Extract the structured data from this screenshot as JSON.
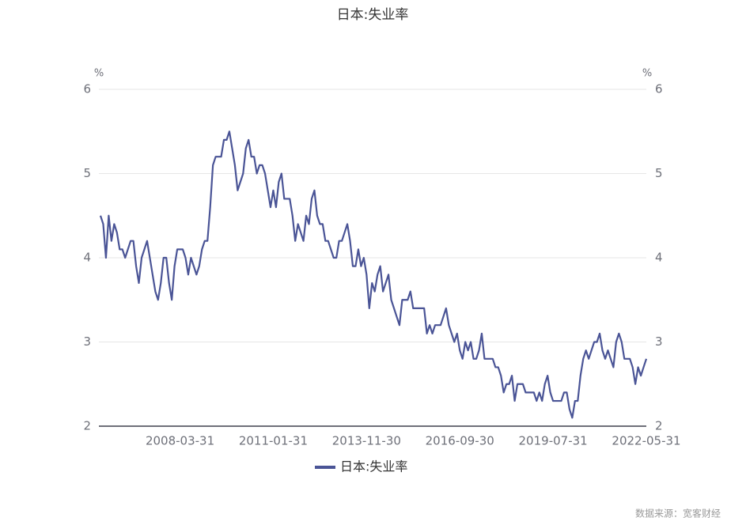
{
  "chart_data": {
    "type": "line",
    "title": "日本:失业率",
    "categories": [
      null,
      null,
      null,
      null,
      null,
      null,
      null,
      null,
      null,
      null,
      null,
      null,
      null,
      null,
      null,
      null,
      null,
      null,
      null,
      null,
      null,
      null,
      null,
      null,
      null,
      null,
      null,
      null,
      null,
      "2008-03-31",
      null,
      null,
      null,
      null,
      null,
      null,
      null,
      null,
      null,
      null,
      null,
      null,
      null,
      null,
      null,
      null,
      null,
      null,
      null,
      null,
      null,
      null,
      null,
      null,
      null,
      null,
      null,
      null,
      null,
      null,
      null,
      null,
      null,
      "2011-01-31",
      null,
      null,
      null,
      null,
      null,
      null,
      null,
      null,
      null,
      null,
      null,
      null,
      null,
      null,
      null,
      null,
      null,
      null,
      null,
      null,
      null,
      null,
      null,
      null,
      null,
      null,
      null,
      null,
      null,
      null,
      null,
      null,
      null,
      "2013-11-30",
      null,
      null,
      null,
      null,
      null,
      null,
      null,
      null,
      null,
      null,
      null,
      null,
      null,
      null,
      null,
      null,
      null,
      null,
      null,
      null,
      null,
      null,
      null,
      null,
      null,
      null,
      null,
      null,
      null,
      null,
      null,
      null,
      null,
      "2016-09-30",
      null,
      null,
      null,
      null,
      null,
      null,
      null,
      null,
      null,
      null,
      null,
      null,
      null,
      null,
      null,
      null,
      null,
      null,
      null,
      null,
      null,
      null,
      null,
      null,
      null,
      null,
      null,
      null,
      null,
      null,
      null,
      null,
      null,
      "2019-07-31",
      null,
      null,
      null,
      null,
      null,
      null,
      null,
      null,
      null,
      null,
      null,
      null,
      null,
      null,
      null,
      null,
      null,
      null,
      null,
      null,
      null,
      null,
      null,
      null,
      null,
      null,
      null,
      null,
      null,
      null,
      null,
      null,
      null,
      "2022-05-31"
    ],
    "series": [
      {
        "name": "日本:失业率",
        "color": "#4a5496",
        "values": [
          4.5,
          4.4,
          4.0,
          4.5,
          4.2,
          4.4,
          4.3,
          4.1,
          4.1,
          4.0,
          4.1,
          4.2,
          4.2,
          3.9,
          3.7,
          4.0,
          4.1,
          4.2,
          4.0,
          3.8,
          3.6,
          3.5,
          3.7,
          4.0,
          4.0,
          3.7,
          3.5,
          3.9,
          4.1,
          4.1,
          4.1,
          4.0,
          3.8,
          4.0,
          3.9,
          3.8,
          3.9,
          4.1,
          4.2,
          4.2,
          4.6,
          5.1,
          5.2,
          5.2,
          5.2,
          5.4,
          5.4,
          5.5,
          5.3,
          5.1,
          4.8,
          4.9,
          5.0,
          5.3,
          5.4,
          5.2,
          5.2,
          5.0,
          5.1,
          5.1,
          5.0,
          4.8,
          4.6,
          4.8,
          4.6,
          4.9,
          5.0,
          4.7,
          4.7,
          4.7,
          4.5,
          4.2,
          4.4,
          4.3,
          4.2,
          4.5,
          4.4,
          4.7,
          4.8,
          4.5,
          4.4,
          4.4,
          4.2,
          4.2,
          4.1,
          4.0,
          4.0,
          4.2,
          4.2,
          4.3,
          4.4,
          4.2,
          3.9,
          3.9,
          4.1,
          3.9,
          4.0,
          3.8,
          3.4,
          3.7,
          3.6,
          3.8,
          3.9,
          3.6,
          3.7,
          3.8,
          3.5,
          3.4,
          3.3,
          3.2,
          3.5,
          3.5,
          3.5,
          3.6,
          3.4,
          3.4,
          3.4,
          3.4,
          3.4,
          3.1,
          3.2,
          3.1,
          3.2,
          3.2,
          3.2,
          3.3,
          3.4,
          3.2,
          3.1,
          3.0,
          3.1,
          2.9,
          2.8,
          3.0,
          2.9,
          3.0,
          2.8,
          2.8,
          2.9,
          3.1,
          2.8,
          2.8,
          2.8,
          2.8,
          2.7,
          2.7,
          2.6,
          2.4,
          2.5,
          2.5,
          2.6,
          2.3,
          2.5,
          2.5,
          2.5,
          2.4,
          2.4,
          2.4,
          2.4,
          2.3,
          2.4,
          2.3,
          2.5,
          2.6,
          2.4,
          2.3,
          2.3,
          2.3,
          2.3,
          2.4,
          2.4,
          2.2,
          2.1,
          2.3,
          2.3,
          2.6,
          2.8,
          2.9,
          2.8,
          2.9,
          3.0,
          3.0,
          3.1,
          2.9,
          2.8,
          2.9,
          2.8,
          2.7,
          3.0,
          3.1,
          3.0,
          2.8,
          2.8,
          2.8,
          2.7,
          2.5,
          2.7,
          2.6,
          2.7,
          2.8
        ]
      }
    ],
    "ylim": [
      2,
      6
    ],
    "yticks": [
      2,
      3,
      4,
      5,
      6
    ],
    "y_unit": "%",
    "y2lim": [
      2,
      6
    ],
    "y2ticks": [
      2,
      3,
      4,
      5,
      6
    ],
    "y2_unit": "%",
    "grid": true,
    "legend": "bottom",
    "source": "数据来源：宽客财经"
  }
}
